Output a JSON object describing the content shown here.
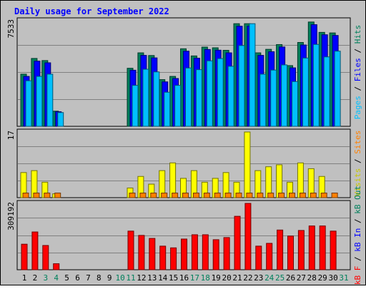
{
  "chart_data": {
    "type": "bar",
    "title": "Daily usage for September 2022",
    "categories": [
      "1",
      "2",
      "3",
      "4",
      "5",
      "6",
      "7",
      "8",
      "9",
      "10",
      "11",
      "12",
      "13",
      "14",
      "15",
      "16",
      "17",
      "18",
      "19",
      "20",
      "21",
      "22",
      "23",
      "24",
      "25",
      "26",
      "27",
      "28",
      "29",
      "30",
      "31"
    ],
    "weekend_days": [
      3,
      4,
      10,
      11,
      17,
      18,
      24,
      25,
      31
    ],
    "panels": [
      {
        "max_label": "7533",
        "ylim": [
          0,
          7533
        ],
        "axis_legend": [
          {
            "text": "Pages",
            "color": "#00c0ff"
          },
          {
            "text": " / ",
            "color": "#000000"
          },
          {
            "text": "Files",
            "color": "#0000ff"
          },
          {
            "text": " / ",
            "color": "#000000"
          },
          {
            "text": "Hits",
            "color": "#00805c"
          }
        ],
        "series": [
          {
            "name": "Hits",
            "color": "#00805c",
            "values": [
              3720,
              4840,
              4690,
              1080,
              0,
              0,
              0,
              0,
              0,
              0,
              4140,
              5240,
              5050,
              3330,
              3560,
              5530,
              5020,
              5650,
              5600,
              5420,
              7320,
              7320,
              5240,
              5490,
              5830,
              4330,
              5980,
              7440,
              6700,
              6660,
              0
            ]
          },
          {
            "name": "Files",
            "color": "#0000ff",
            "values": [
              3560,
              4650,
              4530,
              1040,
              0,
              0,
              0,
              0,
              0,
              0,
              4000,
              5060,
              4880,
              3170,
              3410,
              5360,
              4860,
              5480,
              5430,
              5240,
              7140,
              7150,
              5060,
              5320,
              5660,
              4170,
              5800,
              7250,
              6530,
              6480,
              0
            ]
          },
          {
            "name": "Pages",
            "color": "#00c0ff",
            "values": [
              3250,
              3560,
              3720,
              980,
              0,
              0,
              0,
              0,
              0,
              0,
              2920,
              4070,
              3880,
              2430,
              2920,
              4160,
              4040,
              4670,
              4830,
              4280,
              5760,
              7320,
              3720,
              4010,
              4380,
              3190,
              4870,
              5840,
              4950,
              5360,
              0
            ]
          }
        ]
      },
      {
        "max_label": "17",
        "ylim": [
          0,
          17
        ],
        "axis_legend": [
          {
            "text": "Visits",
            "color": "#c8c800"
          },
          {
            "text": " / ",
            "color": "#000000"
          },
          {
            "text": "Sites",
            "color": "#ff8000"
          }
        ],
        "series": [
          {
            "name": "Visits",
            "color": "#ffff00",
            "values": [
              6.5,
              7,
              4,
              1,
              0,
              0,
              0,
              0,
              0,
              0,
              2.5,
              5.5,
              3.5,
              7,
              9,
              5,
              7,
              4,
              5,
              6.5,
              4,
              17,
              7,
              8,
              8.5,
              4,
              9,
              7.5,
              5.5,
              0,
              0
            ]
          },
          {
            "name": "Sites",
            "color": "#ff8000",
            "values": [
              1.2,
              1.2,
              1.2,
              1.2,
              0,
              0,
              0,
              0,
              0,
              0,
              1.2,
              1.2,
              1.2,
              1.2,
              1.2,
              1.2,
              1.2,
              1.2,
              1.2,
              1.2,
              1.2,
              1.2,
              1.2,
              1.2,
              1.2,
              1.2,
              1.2,
              1.2,
              1.2,
              1.2,
              0
            ]
          }
        ]
      },
      {
        "max_label": "309192",
        "ylim": [
          0,
          309192
        ],
        "axis_legend": [
          {
            "text": "kB F",
            "color": "#ff0000"
          },
          {
            "text": " / ",
            "color": "#000000"
          },
          {
            "text": "kB In",
            "color": "#0000ff"
          },
          {
            "text": " / ",
            "color": "#000000"
          },
          {
            "text": "kB Out",
            "color": "#00805c"
          }
        ],
        "series": [
          {
            "name": "kB F",
            "color": "#ff0000",
            "values": [
              119000,
              176000,
              113000,
              28000,
              0,
              0,
              0,
              0,
              0,
              0,
              180000,
              160000,
              146000,
              110000,
              102000,
              143000,
              163000,
              163000,
              140000,
              150000,
              249000,
              309192,
              110000,
              123000,
              185000,
              157000,
              183000,
              204000,
              204000,
              180000,
              0
            ]
          }
        ]
      }
    ]
  }
}
